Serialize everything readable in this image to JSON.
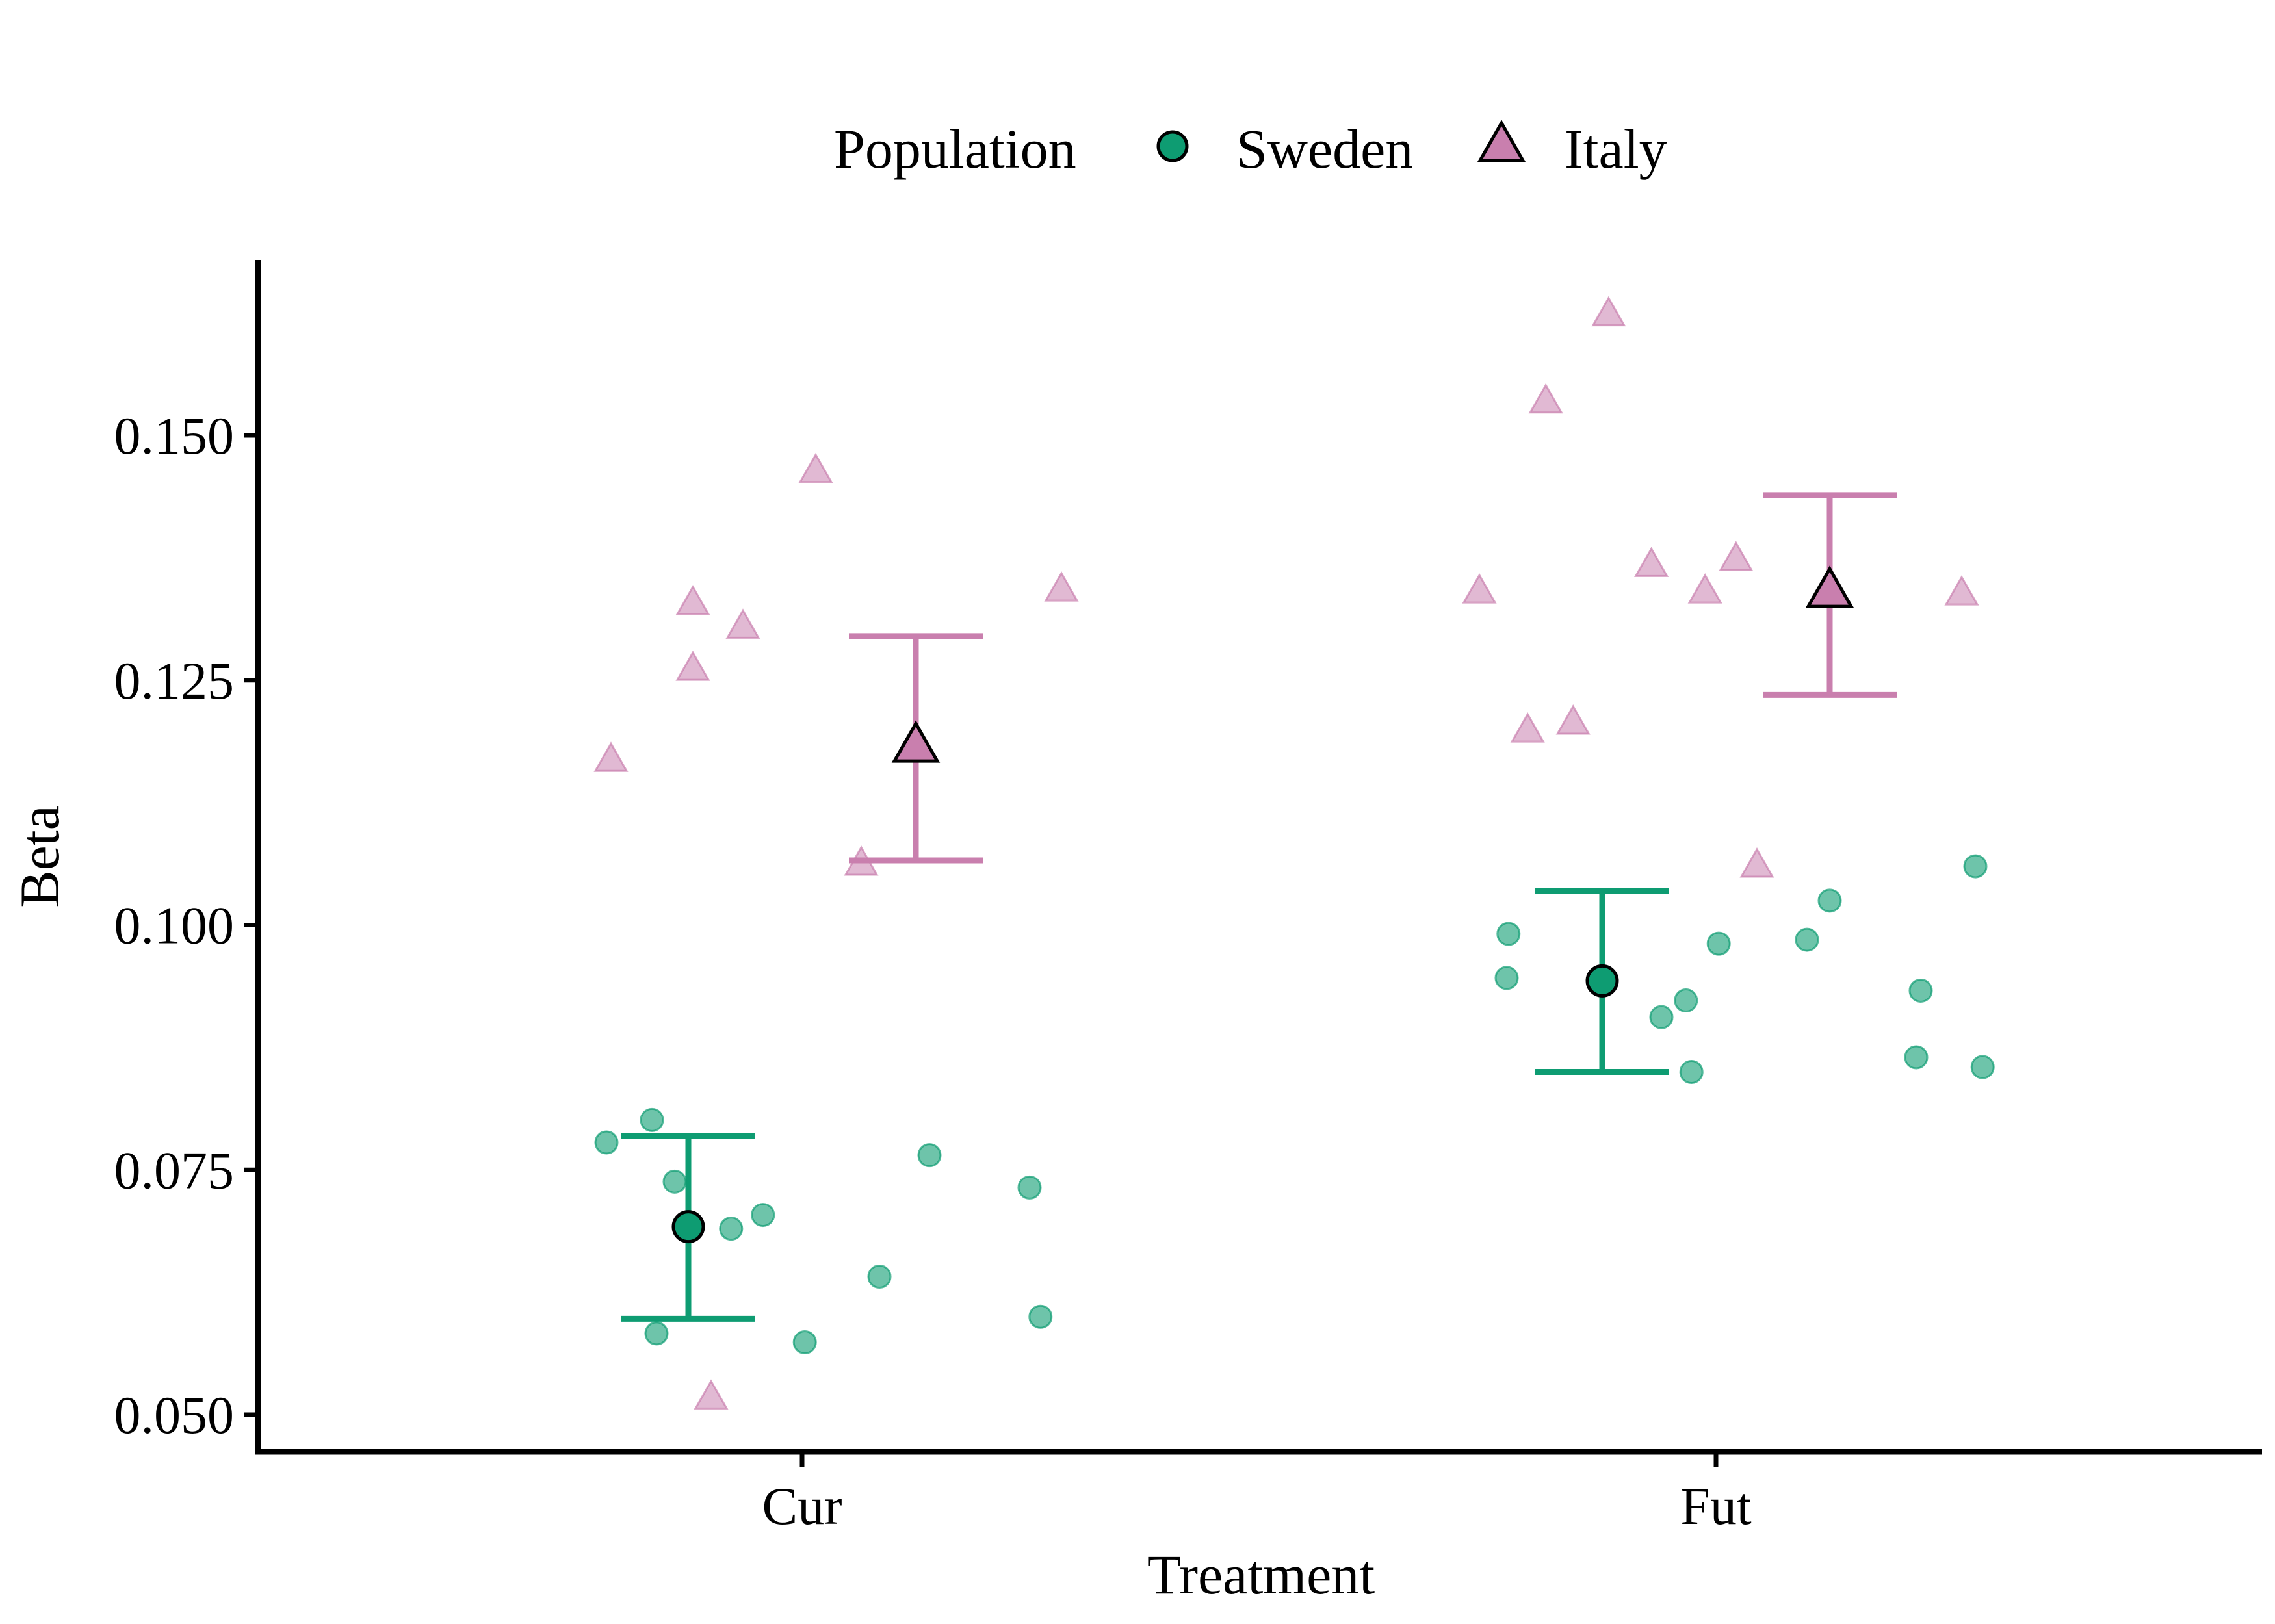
{
  "chart_data": {
    "type": "scatter",
    "title": "",
    "xlabel": "Treatment",
    "ylabel": "Beta",
    "categories": [
      "Cur",
      "Fut"
    ],
    "ylim": [
      0.0455,
      0.1685
    ],
    "yticks": [
      0.05,
      0.075,
      0.1,
      0.125,
      0.15
    ],
    "ytick_labels": [
      "0.050",
      "0.075",
      "0.100",
      "0.125",
      "0.150"
    ],
    "grid": false,
    "legend": {
      "title": "Population",
      "placement": "top",
      "entries": [
        {
          "name": "Sweden",
          "shape": "circle",
          "color": "#0e9c72"
        },
        {
          "name": "Italy",
          "shape": "triangle",
          "color": "#c97fae"
        }
      ]
    },
    "series": [
      {
        "name": "Sweden",
        "shape": "circle",
        "color": "#0e9c72",
        "points": [
          {
            "x": "Cur",
            "offset": -0.215,
            "y": 0.0778
          },
          {
            "x": "Cur",
            "offset": -0.165,
            "y": 0.0801
          },
          {
            "x": "Cur",
            "offset": -0.14,
            "y": 0.0738
          },
          {
            "x": "Cur",
            "offset": -0.16,
            "y": 0.0583
          },
          {
            "x": "Cur",
            "offset": -0.078,
            "y": 0.069
          },
          {
            "x": "Cur",
            "offset": -0.043,
            "y": 0.0704
          },
          {
            "x": "Cur",
            "offset": 0.003,
            "y": 0.0574
          },
          {
            "x": "Cur",
            "offset": 0.085,
            "y": 0.0641
          },
          {
            "x": "Cur",
            "offset": 0.14,
            "y": 0.0765
          },
          {
            "x": "Cur",
            "offset": 0.25,
            "y": 0.0732
          },
          {
            "x": "Cur",
            "offset": 0.262,
            "y": 0.06
          },
          {
            "x": "Fut",
            "offset": -0.228,
            "y": 0.0991
          },
          {
            "x": "Fut",
            "offset": -0.23,
            "y": 0.0946
          },
          {
            "x": "Fut",
            "offset": -0.06,
            "y": 0.0906
          },
          {
            "x": "Fut",
            "offset": -0.033,
            "y": 0.0923
          },
          {
            "x": "Fut",
            "offset": -0.027,
            "y": 0.085
          },
          {
            "x": "Fut",
            "offset": 0.003,
            "y": 0.0981
          },
          {
            "x": "Fut",
            "offset": 0.1,
            "y": 0.0985
          },
          {
            "x": "Fut",
            "offset": 0.125,
            "y": 0.1025
          },
          {
            "x": "Fut",
            "offset": 0.22,
            "y": 0.0865
          },
          {
            "x": "Fut",
            "offset": 0.225,
            "y": 0.0933
          },
          {
            "x": "Fut",
            "offset": 0.285,
            "y": 0.106
          },
          {
            "x": "Fut",
            "offset": 0.293,
            "y": 0.0855
          }
        ],
        "summary": [
          {
            "x": "Cur",
            "offset": -0.125,
            "mean": 0.0692,
            "lower": 0.0598,
            "upper": 0.0785
          },
          {
            "x": "Fut",
            "offset": -0.125,
            "mean": 0.0943,
            "lower": 0.085,
            "upper": 0.1035
          }
        ]
      },
      {
        "name": "Italy",
        "shape": "triangle",
        "color": "#c97fae",
        "points": [
          {
            "x": "Cur",
            "offset": -0.21,
            "y": 0.1168
          },
          {
            "x": "Cur",
            "offset": -0.12,
            "y": 0.1328
          },
          {
            "x": "Cur",
            "offset": -0.12,
            "y": 0.1261
          },
          {
            "x": "Cur",
            "offset": -0.065,
            "y": 0.1304
          },
          {
            "x": "Cur",
            "offset": -0.1,
            "y": 0.0517
          },
          {
            "x": "Cur",
            "offset": 0.015,
            "y": 0.1463
          },
          {
            "x": "Cur",
            "offset": 0.065,
            "y": 0.1062
          },
          {
            "x": "Cur",
            "offset": 0.285,
            "y": 0.1342
          },
          {
            "x": "Fut",
            "offset": -0.26,
            "y": 0.134
          },
          {
            "x": "Fut",
            "offset": -0.207,
            "y": 0.1198
          },
          {
            "x": "Fut",
            "offset": -0.187,
            "y": 0.1534
          },
          {
            "x": "Fut",
            "offset": -0.157,
            "y": 0.1206
          },
          {
            "x": "Fut",
            "offset": -0.118,
            "y": 0.1623
          },
          {
            "x": "Fut",
            "offset": -0.071,
            "y": 0.1367
          },
          {
            "x": "Fut",
            "offset": -0.012,
            "y": 0.134
          },
          {
            "x": "Fut",
            "offset": 0.022,
            "y": 0.1373
          },
          {
            "x": "Fut",
            "offset": 0.045,
            "y": 0.106
          },
          {
            "x": "Fut",
            "offset": 0.27,
            "y": 0.1338
          }
        ],
        "summary": [
          {
            "x": "Cur",
            "offset": 0.125,
            "mean": 0.1182,
            "lower": 0.1066,
            "upper": 0.1295
          },
          {
            "x": "Fut",
            "offset": 0.125,
            "mean": 0.134,
            "lower": 0.1235,
            "upper": 0.1439
          }
        ]
      }
    ]
  }
}
